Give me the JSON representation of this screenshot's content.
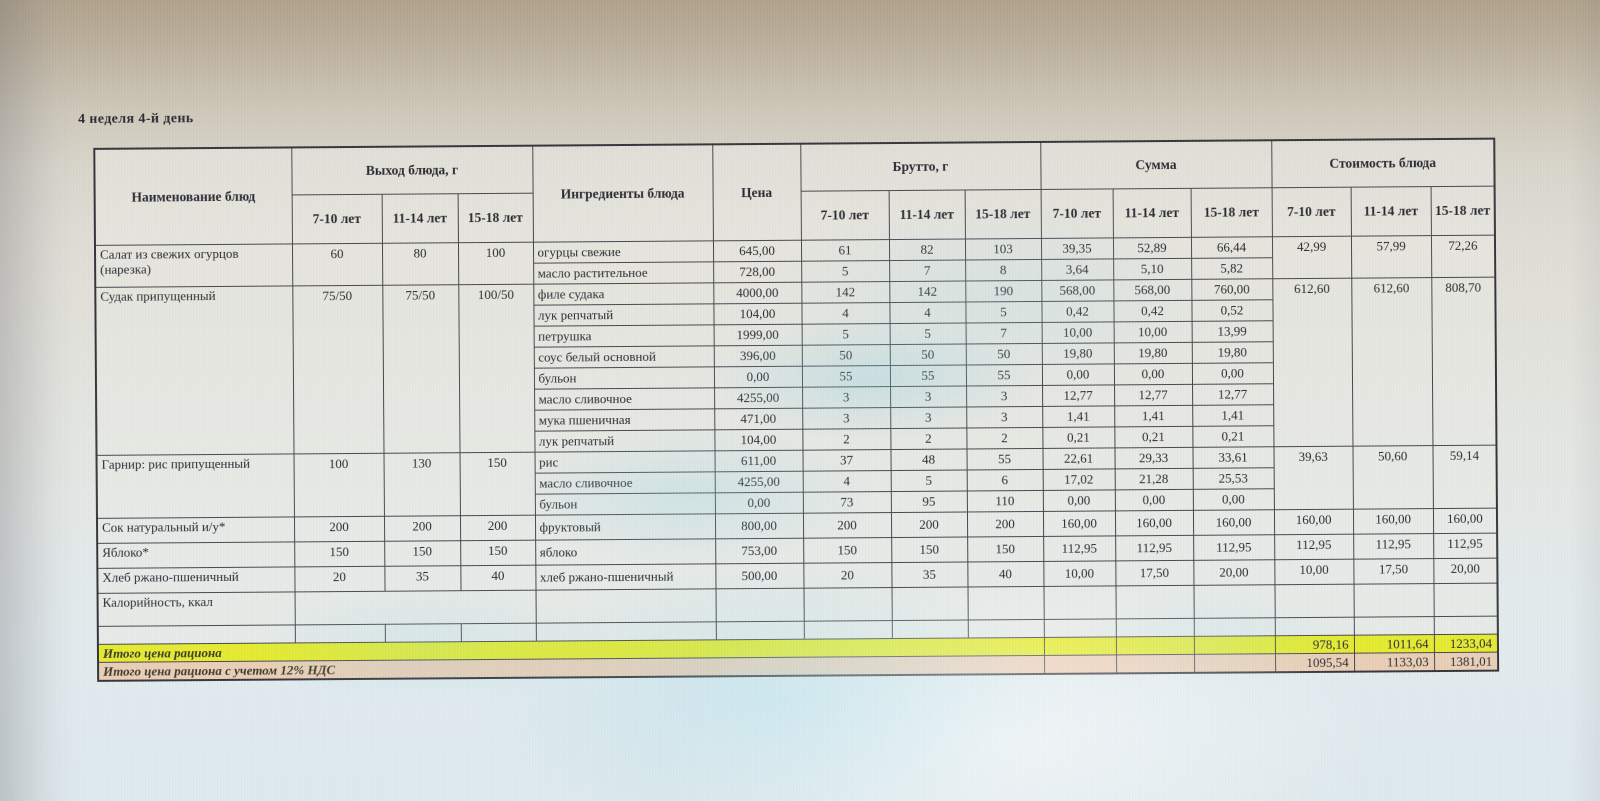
{
  "title": "4 неделя 4-й день",
  "colors": {
    "total_row_ration": "#e4ea30",
    "total_row_vat": "#e9ceb6",
    "table_border": "#47474d",
    "text": "#2b2b33"
  },
  "table": {
    "headers": {
      "name": "Наименование блюд",
      "output_group": "Выход блюда, г",
      "ingredients": "Ингредиенты блюда",
      "price": "Цена",
      "brutto_group": "Брутто, г",
      "sum_group": "Сумма",
      "cost_group": "Стоимость блюда",
      "age_groups": [
        "7-10 лет",
        "11-14 лет",
        "15-18 лет"
      ]
    },
    "sections": [
      {
        "name": "Салат из свежих огурцов (нарезка)",
        "output": [
          "60",
          "80",
          "100"
        ],
        "cost": [
          "42,99",
          "57,99",
          "72,26"
        ],
        "rows": [
          {
            "ingredient": "огурцы свежие",
            "price": "645,00",
            "brutto": [
              "61",
              "82",
              "103"
            ],
            "sum": [
              "39,35",
              "52,89",
              "66,44"
            ]
          },
          {
            "ingredient": "масло растительное",
            "price": "728,00",
            "brutto": [
              "5",
              "7",
              "8"
            ],
            "sum": [
              "3,64",
              "5,10",
              "5,82"
            ]
          }
        ]
      },
      {
        "name": "Судак припущенный",
        "output": [
          "75/50",
          "75/50",
          "100/50"
        ],
        "cost": [
          "612,60",
          "612,60",
          "808,70"
        ],
        "rows": [
          {
            "ingredient": "филе судака",
            "price": "4000,00",
            "brutto": [
              "142",
              "142",
              "190"
            ],
            "sum": [
              "568,00",
              "568,00",
              "760,00"
            ]
          },
          {
            "ingredient": "лук репчатый",
            "price": "104,00",
            "brutto": [
              "4",
              "4",
              "5"
            ],
            "sum": [
              "0,42",
              "0,42",
              "0,52"
            ]
          },
          {
            "ingredient": "петрушка",
            "price": "1999,00",
            "brutto": [
              "5",
              "5",
              "7"
            ],
            "sum": [
              "10,00",
              "10,00",
              "13,99"
            ]
          },
          {
            "ingredient": "соус белый основной",
            "price": "396,00",
            "brutto": [
              "50",
              "50",
              "50"
            ],
            "sum": [
              "19,80",
              "19,80",
              "19,80"
            ]
          },
          {
            "ingredient": "бульон",
            "price": "0,00",
            "brutto": [
              "55",
              "55",
              "55"
            ],
            "sum": [
              "0,00",
              "0,00",
              "0,00"
            ]
          },
          {
            "ingredient": "масло сливочное",
            "price": "4255,00",
            "brutto": [
              "3",
              "3",
              "3"
            ],
            "sum": [
              "12,77",
              "12,77",
              "12,77"
            ]
          },
          {
            "ingredient": "мука пшеничная",
            "price": "471,00",
            "brutto": [
              "3",
              "3",
              "3"
            ],
            "sum": [
              "1,41",
              "1,41",
              "1,41"
            ]
          },
          {
            "ingredient": "лук репчатый",
            "price": "104,00",
            "brutto": [
              "2",
              "2",
              "2"
            ],
            "sum": [
              "0,21",
              "0,21",
              "0,21"
            ]
          }
        ]
      },
      {
        "name": "Гарнир: рис припущенный",
        "output": [
          "100",
          "130",
          "150"
        ],
        "cost": [
          "39,63",
          "50,60",
          "59,14"
        ],
        "rows": [
          {
            "ingredient": "рис",
            "price": "611,00",
            "brutto": [
              "37",
              "48",
              "55"
            ],
            "sum": [
              "22,61",
              "29,33",
              "33,61"
            ]
          },
          {
            "ingredient": "масло сливочное",
            "price": "4255,00",
            "brutto": [
              "4",
              "5",
              "6"
            ],
            "sum": [
              "17,02",
              "21,28",
              "25,53"
            ]
          },
          {
            "ingredient": "бульон",
            "price": "0,00",
            "brutto": [
              "73",
              "95",
              "110"
            ],
            "sum": [
              "0,00",
              "0,00",
              "0,00"
            ]
          }
        ]
      },
      {
        "name": "Сок натуральный и/у*",
        "output": [
          "200",
          "200",
          "200"
        ],
        "cost": [
          "160,00",
          "160,00",
          "160,00"
        ],
        "rows": [
          {
            "ingredient": "фруктовый",
            "price": "800,00",
            "brutto": [
              "200",
              "200",
              "200"
            ],
            "sum": [
              "160,00",
              "160,00",
              "160,00"
            ]
          }
        ]
      },
      {
        "name": "Яблоко*",
        "output": [
          "150",
          "150",
          "150"
        ],
        "cost": [
          "112,95",
          "112,95",
          "112,95"
        ],
        "rows": [
          {
            "ingredient": "яблоко",
            "price": "753,00",
            "brutto": [
              "150",
              "150",
              "150"
            ],
            "sum": [
              "112,95",
              "112,95",
              "112,95"
            ]
          }
        ]
      },
      {
        "name": "Хлеб ржано-пшеничный",
        "output": [
          "20",
          "35",
          "40"
        ],
        "cost": [
          "10,00",
          "17,50",
          "20,00"
        ],
        "rows": [
          {
            "ingredient": "хлеб ржано-пшеничный",
            "price": "500,00",
            "brutto": [
              "20",
              "35",
              "40"
            ],
            "sum": [
              "10,00",
              "17,50",
              "20,00"
            ]
          }
        ]
      }
    ],
    "calories_row_label": "Калорийность, ккал",
    "totals": [
      {
        "label": "Итого цена рациона",
        "values": [
          "978,16",
          "1011,64",
          "1233,04"
        ]
      },
      {
        "label": "Итого цена рациона с учетом 12% НДС",
        "values": [
          "1095,54",
          "1133,03",
          "1381,01"
        ]
      }
    ]
  }
}
